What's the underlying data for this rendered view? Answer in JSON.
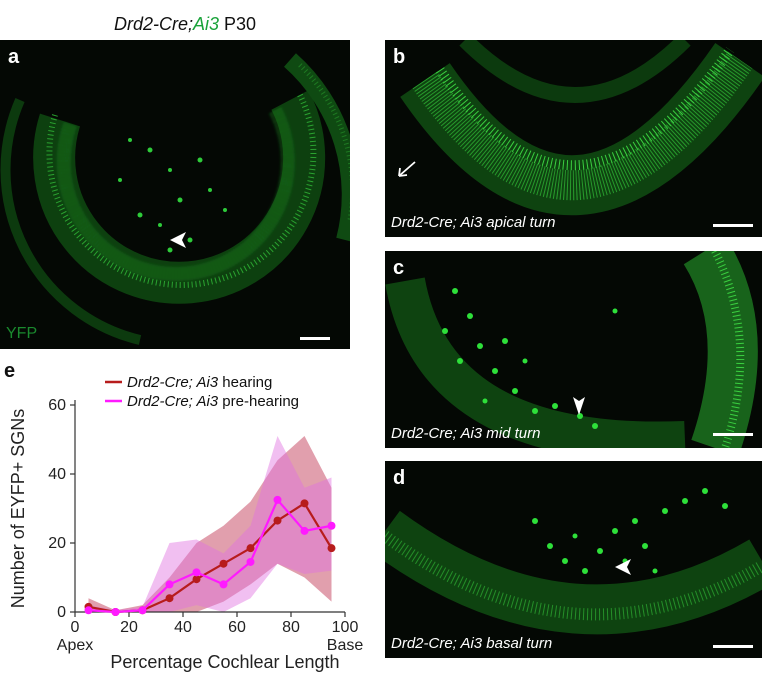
{
  "figure": {
    "title_gene": "Drd2-Cre;",
    "title_reporter": "Ai3",
    "title_age": "P30",
    "accent_green": "#1aa33a",
    "panels": {
      "a": {
        "label": "a",
        "marker": "YFP"
      },
      "b": {
        "label": "b",
        "caption": "Drd2-Cre; Ai3 apical turn"
      },
      "c": {
        "label": "c",
        "caption": "Drd2-Cre; Ai3 mid turn"
      },
      "d": {
        "label": "d",
        "caption": "Drd2-Cre; Ai3 basal turn"
      },
      "e": {
        "label": "e"
      }
    }
  },
  "chart_data": {
    "type": "line",
    "ylabel": "Number of EYFP+ SGNs",
    "xlabel": "Percentage Cochlear Length",
    "xlim": [
      0,
      100
    ],
    "ylim": [
      0,
      60
    ],
    "x_ticks": [
      "0",
      "20",
      "40",
      "60",
      "80",
      "100"
    ],
    "y_ticks": [
      "0",
      "20",
      "40",
      "60"
    ],
    "x_end_labels": {
      "left": "Apex",
      "right": "Base"
    },
    "legend_position": "top-left",
    "series": [
      {
        "name_italic": "Drd2-Cre; Ai3",
        "name_suffix": " hearing",
        "color": "#b71c1c",
        "band_color": "#c8506a",
        "x": [
          5,
          15,
          25,
          35,
          45,
          55,
          65,
          75,
          85,
          95
        ],
        "values": [
          1.5,
          0,
          0.5,
          4,
          9.5,
          14,
          18.5,
          26.5,
          31.5,
          18.5
        ],
        "lower": [
          0,
          0,
          0,
          0,
          0,
          3,
          8,
          14,
          10,
          3
        ],
        "upper": [
          4,
          0.5,
          2,
          10,
          20,
          25,
          32,
          44,
          51,
          36
        ]
      },
      {
        "name_italic": "Drd2-Cre; Ai3",
        "name_suffix": " pre-hearing",
        "color": "#ff1aff",
        "band_color": "#e070e0",
        "x": [
          5,
          15,
          25,
          35,
          45,
          55,
          65,
          75,
          85,
          95
        ],
        "values": [
          0.5,
          0,
          0.5,
          8,
          11.5,
          8,
          14.5,
          32.5,
          23.5,
          25
        ],
        "lower": [
          0,
          0,
          0,
          0,
          2,
          0,
          4,
          14,
          11,
          12
        ],
        "upper": [
          2,
          0.5,
          1.5,
          20,
          21,
          17,
          25,
          51,
          36,
          39
        ]
      }
    ]
  }
}
